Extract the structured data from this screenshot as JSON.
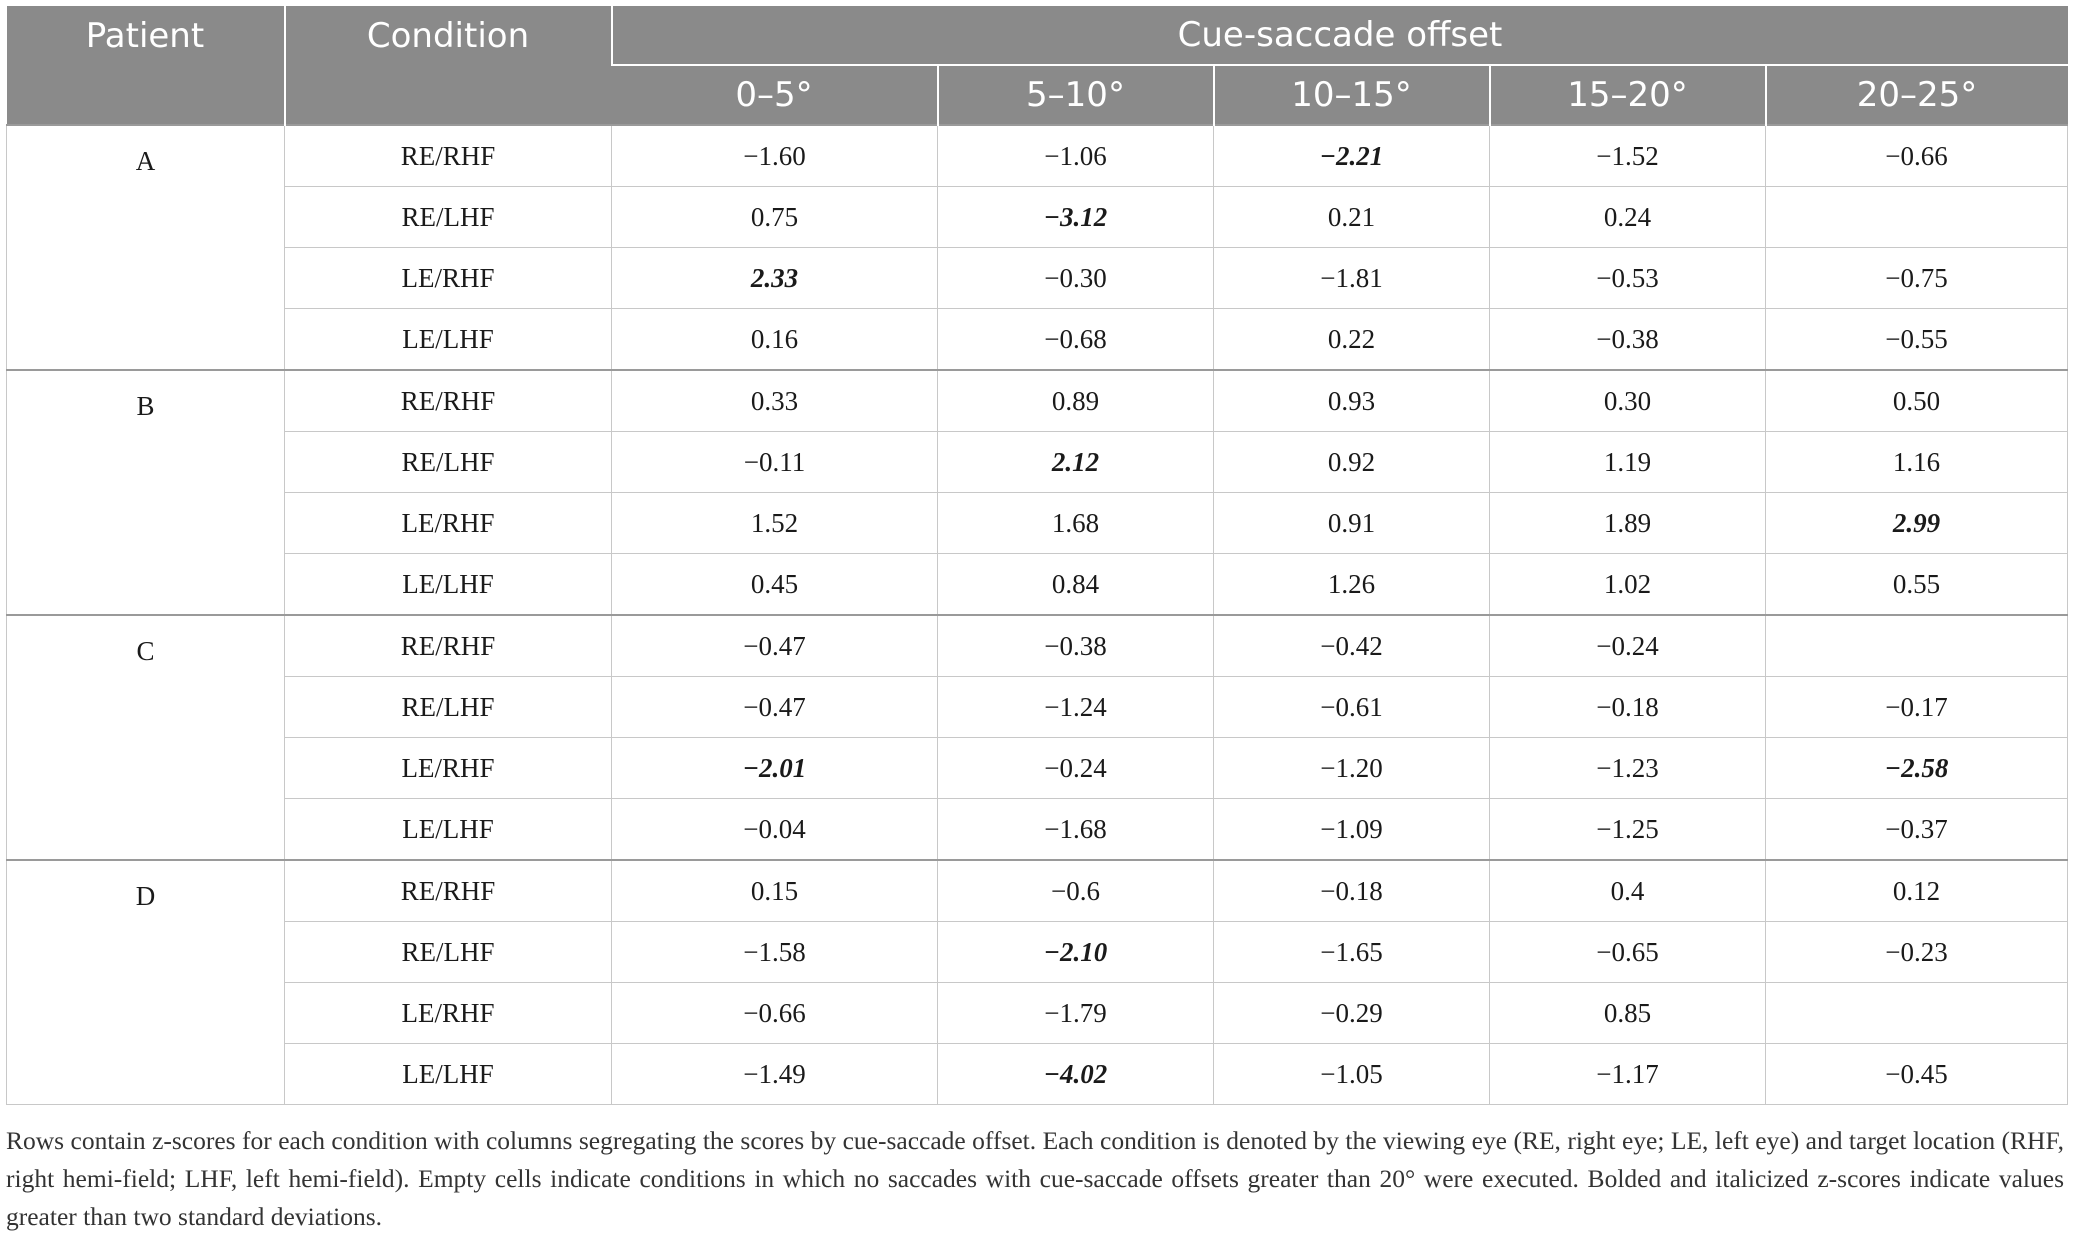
{
  "table": {
    "header": {
      "patient": "Patient",
      "condition": "Condition",
      "group": "Cue-saccade offset",
      "offsets": [
        "0–5°",
        "5–10°",
        "10–15°",
        "15–20°",
        "20–25°"
      ]
    },
    "patients": [
      {
        "label": "A",
        "rows": [
          {
            "condition": "RE/RHF",
            "values": [
              "−1.60",
              "−1.06",
              "−2.21",
              "−1.52",
              "−0.66"
            ],
            "sig": [
              false,
              false,
              true,
              false,
              false
            ]
          },
          {
            "condition": "RE/LHF",
            "values": [
              "0.75",
              "−3.12",
              "0.21",
              "0.24",
              ""
            ],
            "sig": [
              false,
              true,
              false,
              false,
              false
            ]
          },
          {
            "condition": "LE/RHF",
            "values": [
              "2.33",
              "−0.30",
              "−1.81",
              "−0.53",
              "−0.75"
            ],
            "sig": [
              true,
              false,
              false,
              false,
              false
            ]
          },
          {
            "condition": "LE/LHF",
            "values": [
              "0.16",
              "−0.68",
              "0.22",
              "−0.38",
              "−0.55"
            ],
            "sig": [
              false,
              false,
              false,
              false,
              false
            ]
          }
        ]
      },
      {
        "label": "B",
        "rows": [
          {
            "condition": "RE/RHF",
            "values": [
              "0.33",
              "0.89",
              "0.93",
              "0.30",
              "0.50"
            ],
            "sig": [
              false,
              false,
              false,
              false,
              false
            ]
          },
          {
            "condition": "RE/LHF",
            "values": [
              "−0.11",
              "2.12",
              "0.92",
              "1.19",
              "1.16"
            ],
            "sig": [
              false,
              true,
              false,
              false,
              false
            ]
          },
          {
            "condition": "LE/RHF",
            "values": [
              "1.52",
              "1.68",
              "0.91",
              "1.89",
              "2.99"
            ],
            "sig": [
              false,
              false,
              false,
              false,
              true
            ]
          },
          {
            "condition": "LE/LHF",
            "values": [
              "0.45",
              "0.84",
              "1.26",
              "1.02",
              "0.55"
            ],
            "sig": [
              false,
              false,
              false,
              false,
              false
            ]
          }
        ]
      },
      {
        "label": "C",
        "rows": [
          {
            "condition": "RE/RHF",
            "values": [
              "−0.47",
              "−0.38",
              "−0.42",
              "−0.24",
              ""
            ],
            "sig": [
              false,
              false,
              false,
              false,
              false
            ]
          },
          {
            "condition": "RE/LHF",
            "values": [
              "−0.47",
              "−1.24",
              "−0.61",
              "−0.18",
              "−0.17"
            ],
            "sig": [
              false,
              false,
              false,
              false,
              false
            ]
          },
          {
            "condition": "LE/RHF",
            "values": [
              "−2.01",
              "−0.24",
              "−1.20",
              "−1.23",
              "−2.58"
            ],
            "sig": [
              true,
              false,
              false,
              false,
              true
            ]
          },
          {
            "condition": "LE/LHF",
            "values": [
              "−0.04",
              "−1.68",
              "−1.09",
              "−1.25",
              "−0.37"
            ],
            "sig": [
              false,
              false,
              false,
              false,
              false
            ]
          }
        ]
      },
      {
        "label": "D",
        "rows": [
          {
            "condition": "RE/RHF",
            "values": [
              "0.15",
              "−0.6",
              "−0.18",
              "0.4",
              "0.12"
            ],
            "sig": [
              false,
              false,
              false,
              false,
              false
            ]
          },
          {
            "condition": "RE/LHF",
            "values": [
              "−1.58",
              "−2.10",
              "−1.65",
              "−0.65",
              "−0.23"
            ],
            "sig": [
              false,
              true,
              false,
              false,
              false
            ]
          },
          {
            "condition": "LE/RHF",
            "values": [
              "−0.66",
              "−1.79",
              "−0.29",
              "0.85",
              ""
            ],
            "sig": [
              false,
              false,
              false,
              false,
              false
            ]
          },
          {
            "condition": "LE/LHF",
            "values": [
              "−1.49",
              "−4.02",
              "−1.05",
              "−1.17",
              "−0.45"
            ],
            "sig": [
              false,
              true,
              false,
              false,
              false
            ]
          }
        ]
      }
    ]
  },
  "caption": "Rows contain z-scores for each condition with columns segregating the scores by cue-saccade offset. Each condition is denoted by the viewing eye (RE, right eye; LE, left eye) and target location (RHF, right hemi-field; LHF, left hemi-field). Empty cells indicate conditions in which no saccades with cue-saccade offsets greater than 20° were executed. Bolded and italicized z-scores indicate values greater than two standard deviations."
}
